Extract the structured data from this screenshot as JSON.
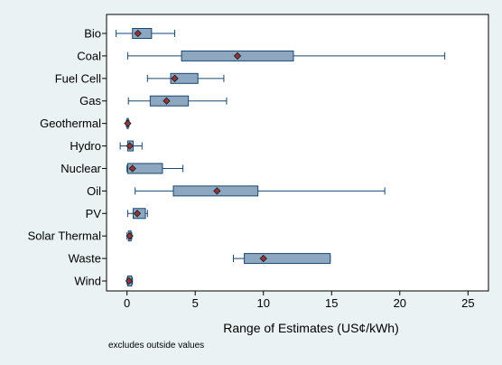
{
  "chart_data": {
    "type": "boxplot",
    "orientation": "horizontal",
    "xlabel": "Range of Estimates (US¢/kWh)",
    "note": "excludes outside values",
    "xlim": [
      -1.5,
      26.5
    ],
    "xticks": [
      0,
      5,
      10,
      15,
      20,
      25
    ],
    "categories": [
      "Bio",
      "Coal",
      "Fuel Cell",
      "Gas",
      "Geothermal",
      "Hydro",
      "Nuclear",
      "Oil",
      "PV",
      "Solar Thermal",
      "Waste",
      "Wind"
    ],
    "series": [
      {
        "category": "Bio",
        "min": -0.8,
        "q1": 0.4,
        "q3": 1.8,
        "max": 3.5,
        "mean": 0.8
      },
      {
        "category": "Coal",
        "min": 0.05,
        "q1": 4.0,
        "q3": 12.2,
        "max": 23.3,
        "mean": 8.1
      },
      {
        "category": "Fuel Cell",
        "min": 1.5,
        "q1": 3.2,
        "q3": 5.2,
        "max": 7.1,
        "mean": 3.5
      },
      {
        "category": "Gas",
        "min": 0.1,
        "q1": 1.7,
        "q3": 4.5,
        "max": 7.3,
        "mean": 2.9
      },
      {
        "category": "Geothermal",
        "min": -0.05,
        "q1": 0.0,
        "q3": 0.1,
        "max": 0.15,
        "mean": 0.05
      },
      {
        "category": "Hydro",
        "min": -0.5,
        "q1": 0.05,
        "q3": 0.45,
        "max": 1.1,
        "mean": 0.2
      },
      {
        "category": "Nuclear",
        "min": 0.0,
        "q1": 0.05,
        "q3": 2.6,
        "max": 4.1,
        "mean": 0.4
      },
      {
        "category": "Oil",
        "min": 0.6,
        "q1": 3.4,
        "q3": 9.6,
        "max": 18.9,
        "mean": 6.6
      },
      {
        "category": "PV",
        "min": 0.05,
        "q1": 0.45,
        "q3": 1.35,
        "max": 1.5,
        "mean": 0.75
      },
      {
        "category": "Solar Thermal",
        "min": 0.0,
        "q1": 0.1,
        "q3": 0.3,
        "max": 0.35,
        "mean": 0.2
      },
      {
        "category": "Waste",
        "min": 7.8,
        "q1": 8.6,
        "q3": 14.9,
        "max": 14.9,
        "mean": 10.0
      },
      {
        "category": "Wind",
        "min": 0.0,
        "q1": 0.05,
        "q3": 0.35,
        "max": 0.4,
        "mean": 0.15
      }
    ],
    "colors": {
      "box_fill": "#8ea7c0",
      "box_stroke": "#1a476f",
      "whisker": "#1a476f",
      "marker_fill": "#90353b",
      "marker_stroke": "#1a1a1a",
      "outer_bg": "#eaf2f3",
      "plot_bg": "#ffffff",
      "axis": "#000000"
    },
    "grid": false,
    "legend": "none"
  }
}
